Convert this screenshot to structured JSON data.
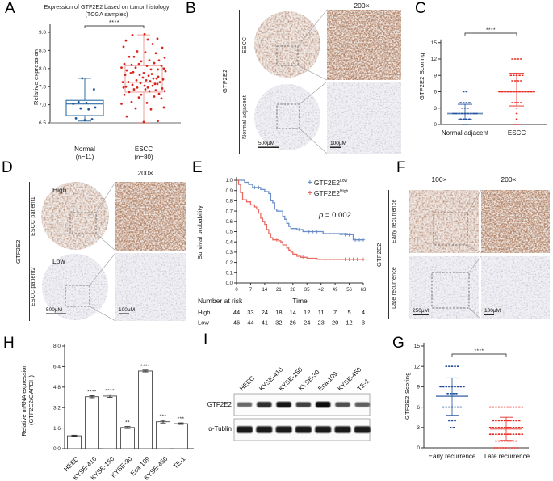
{
  "panels": {
    "A": {
      "label": "A",
      "title1": "Expression of GTF2E2 based on tumor histology",
      "title2": "(TCGA samples)",
      "ylabel": "Relative expression",
      "xcat1": "Normal",
      "xcat1n": "(n=11)",
      "xcat2": "ESCC",
      "xcat2n": "(n=80)"
    },
    "B": {
      "label": "B",
      "mag": "200×",
      "target": "GTF2E2",
      "row1": "ESCC",
      "row2": "Normal adjacent",
      "scale_left": "500μM",
      "scale_right": "100μM"
    },
    "C": {
      "label": "C",
      "ylabel": "GTF2E2 Scoring",
      "xcat1": "Normal adjacent",
      "xcat2": "ESCC"
    },
    "D": {
      "label": "D",
      "mag": "200×",
      "target": "GTF2E2",
      "row1": "ESCC patient1",
      "row2": "ESCC patient2",
      "tag1": "High",
      "tag2": "Low",
      "scale_left": "500μM",
      "scale_right": "100μM"
    },
    "E": {
      "label": "E",
      "ylabel": "Survival probability",
      "legend1_base": "GTF2E2",
      "legend1_sup": "Low",
      "legend2_base": "GTF2E2",
      "legend2_sup": "High",
      "p_italic": "p",
      "p_rest": " = 0.002"
    },
    "F": {
      "label": "F",
      "mag1": "100×",
      "mag2": "200×",
      "target": "GTF2E2",
      "row1": "Early recurrence",
      "row2": "Late recurrence",
      "scale_left": "250μM",
      "scale_right": "100μM"
    },
    "G": {
      "label": "G",
      "ylabel": "GTF2E2 Scoring",
      "xcat1": "Early recurrence",
      "xcat2": "Late recurrence"
    },
    "H": {
      "label": "H",
      "ylabel1": "Relative mRNA expression",
      "ylabel2": "(GTF2E2/GAPDH)"
    },
    "I": {
      "label": "I",
      "band1": "GTF2E2",
      "band2": "α-Tublin"
    }
  },
  "chart_data": [
    {
      "id": "A",
      "type": "box-scatter",
      "title": "Expression of GTF2E2 based on tumor histology (TCGA samples)",
      "ylabel": "Relative expression",
      "ylim": [
        6.5,
        9.0
      ],
      "yticks": [
        6.5,
        7.0,
        7.5,
        8.0,
        8.5,
        9.0
      ],
      "significance": "****",
      "groups": [
        {
          "name": "Normal (n=11)",
          "color": "#1d5596",
          "box_color": "#2e6da4",
          "box": {
            "min": 6.55,
            "q1": 6.7,
            "median": 7.02,
            "q3": 7.12,
            "max": 7.73
          },
          "points": [
            6.55,
            6.6,
            6.65,
            6.85,
            6.9,
            6.95,
            7.0,
            7.05,
            7.1,
            7.4,
            7.73
          ]
        },
        {
          "name": "ESCC (n=80)",
          "color": "#d8251d",
          "box_color": "#efa09b",
          "box": {
            "min": 6.5,
            "q1": 7.35,
            "median": 7.62,
            "q3": 8.08,
            "max": 8.93
          },
          "points": [
            6.5,
            6.55,
            6.7,
            6.85,
            6.9,
            6.95,
            7.0,
            7.05,
            7.1,
            7.15,
            7.2,
            7.25,
            7.25,
            7.3,
            7.3,
            7.35,
            7.35,
            7.4,
            7.4,
            7.4,
            7.45,
            7.45,
            7.45,
            7.5,
            7.5,
            7.5,
            7.5,
            7.55,
            7.55,
            7.55,
            7.6,
            7.6,
            7.6,
            7.6,
            7.65,
            7.65,
            7.65,
            7.7,
            7.7,
            7.7,
            7.75,
            7.75,
            7.8,
            7.8,
            7.8,
            7.85,
            7.85,
            7.85,
            7.9,
            7.9,
            7.9,
            7.95,
            7.95,
            8.0,
            8.0,
            8.0,
            8.05,
            8.05,
            8.1,
            8.1,
            8.1,
            8.15,
            8.15,
            8.2,
            8.2,
            8.25,
            8.3,
            8.3,
            8.35,
            8.4,
            8.45,
            8.5,
            8.55,
            8.6,
            8.7,
            8.75,
            8.8,
            8.85,
            8.9,
            8.95
          ]
        }
      ]
    },
    {
      "id": "C",
      "type": "dot-plot",
      "ylabel": "GTF2E2 Scoring",
      "ylim": [
        0,
        15
      ],
      "yticks": [
        0,
        3,
        6,
        9,
        12,
        15
      ],
      "significance": "****",
      "groups": [
        {
          "name": "Normal adjacent",
          "color": "#1d4f9c",
          "mean": 2.0,
          "err_low": 0.9,
          "err_high": 3.7,
          "rows": [
            [
              6,
              2
            ],
            [
              4,
              4
            ],
            [
              3,
              3
            ],
            [
              2,
              9
            ],
            [
              1,
              4
            ],
            [
              0,
              2
            ]
          ]
        },
        {
          "name": "ESCC",
          "color": "#e8281e",
          "mean": 6.0,
          "err_low": 3.4,
          "err_high": 9.4,
          "rows": [
            [
              12,
              4
            ],
            [
              9,
              5
            ],
            [
              8,
              4
            ],
            [
              6,
              13
            ],
            [
              4,
              4
            ],
            [
              3,
              1
            ],
            [
              2,
              1
            ],
            [
              1,
              1
            ],
            [
              0,
              2
            ]
          ]
        }
      ]
    },
    {
      "id": "E",
      "type": "line-step-km",
      "ylabel": "Survival probability",
      "xlabel": "Time",
      "p_value": "p = 0.002",
      "xticks": [
        0,
        7,
        14,
        21,
        28,
        35,
        42,
        49,
        56,
        63
      ],
      "yticks": [
        0.0,
        0.1,
        0.2,
        0.3,
        0.4,
        0.5,
        0.6,
        0.7,
        0.8,
        0.9,
        1.0
      ],
      "series": [
        {
          "name": "GTF2E2 Low",
          "color": "#6a8ec9",
          "steps": [
            [
              0,
              1.0
            ],
            [
              4,
              0.98
            ],
            [
              6,
              0.96
            ],
            [
              8,
              0.93
            ],
            [
              12,
              0.91
            ],
            [
              14,
              0.89
            ],
            [
              16,
              0.87
            ],
            [
              17,
              0.8
            ],
            [
              18,
              0.78
            ],
            [
              19,
              0.72
            ],
            [
              20,
              0.7
            ],
            [
              23,
              0.65
            ],
            [
              24,
              0.62
            ],
            [
              25,
              0.58
            ],
            [
              26,
              0.55
            ],
            [
              27,
              0.53
            ],
            [
              30,
              0.52
            ],
            [
              33,
              0.5
            ],
            [
              43,
              0.48
            ],
            [
              55,
              0.47
            ],
            [
              58,
              0.42
            ],
            [
              63,
              0.42
            ]
          ],
          "censors": [
            [
              9,
              0.93
            ],
            [
              11,
              0.93
            ],
            [
              21,
              0.7
            ],
            [
              31,
              0.52
            ],
            [
              36,
              0.5
            ],
            [
              38,
              0.5
            ],
            [
              40,
              0.5
            ],
            [
              44,
              0.48
            ],
            [
              46,
              0.48
            ],
            [
              48,
              0.48
            ],
            [
              50,
              0.48
            ],
            [
              52,
              0.47
            ],
            [
              54,
              0.47
            ],
            [
              56,
              0.47
            ],
            [
              59,
              0.42
            ],
            [
              61,
              0.42
            ],
            [
              63,
              0.42
            ]
          ]
        },
        {
          "name": "GTF2E2 High",
          "color": "#ea6a62",
          "steps": [
            [
              0,
              1.0
            ],
            [
              1,
              0.96
            ],
            [
              2,
              0.88
            ],
            [
              3,
              0.81
            ],
            [
              5,
              0.79
            ],
            [
              7,
              0.76
            ],
            [
              9,
              0.74
            ],
            [
              10,
              0.72
            ],
            [
              11,
              0.68
            ],
            [
              12,
              0.63
            ],
            [
              13,
              0.6
            ],
            [
              14,
              0.57
            ],
            [
              15,
              0.52
            ],
            [
              16,
              0.48
            ],
            [
              17,
              0.44
            ],
            [
              18,
              0.42
            ],
            [
              21,
              0.41
            ],
            [
              22,
              0.4
            ],
            [
              23,
              0.37
            ],
            [
              25,
              0.34
            ],
            [
              26,
              0.32
            ],
            [
              27,
              0.3
            ],
            [
              28,
              0.28
            ],
            [
              30,
              0.26
            ],
            [
              32,
              0.25
            ],
            [
              35,
              0.24
            ],
            [
              40,
              0.23
            ],
            [
              63,
              0.23
            ]
          ],
          "censors": [
            [
              20,
              0.42
            ],
            [
              29,
              0.28
            ],
            [
              33,
              0.25
            ],
            [
              44,
              0.23
            ],
            [
              46,
              0.23
            ],
            [
              48,
              0.23
            ],
            [
              50,
              0.23
            ],
            [
              52,
              0.23
            ],
            [
              54,
              0.23
            ],
            [
              56,
              0.23
            ],
            [
              58,
              0.23
            ],
            [
              60,
              0.23
            ],
            [
              63,
              0.23
            ]
          ]
        }
      ],
      "risk": {
        "title": "Number at risk",
        "rows": [
          {
            "label": "High",
            "counts": [
              44,
              33,
              24,
              18,
              14,
              12,
              11,
              7,
              5,
              4
            ]
          },
          {
            "label": "Low",
            "counts": [
              46,
              44,
              41,
              32,
              26,
              24,
              23,
              20,
              12,
              3
            ]
          }
        ]
      }
    },
    {
      "id": "G",
      "type": "dot-plot",
      "ylabel": "GTF2E2 Scoring",
      "ylim": [
        0,
        15
      ],
      "yticks": [
        0,
        3,
        6,
        9,
        12,
        15
      ],
      "significance": "****",
      "groups": [
        {
          "name": "Early recurrence",
          "color": "#1d4f9c",
          "mean": 7.6,
          "err_low": 4.8,
          "err_high": 10.3,
          "rows": [
            [
              12,
              5
            ],
            [
              9,
              9
            ],
            [
              8,
              4
            ],
            [
              6,
              7
            ],
            [
              4,
              3
            ],
            [
              3,
              2
            ]
          ]
        },
        {
          "name": "Late recurrence",
          "color": "#e8281e",
          "mean": 2.8,
          "err_low": 1.1,
          "err_high": 4.5,
          "rows": [
            [
              6,
              12
            ],
            [
              4,
              10
            ],
            [
              3,
              12
            ],
            [
              2,
              12
            ],
            [
              1,
              8
            ],
            [
              0,
              9
            ]
          ]
        }
      ]
    },
    {
      "id": "H",
      "type": "bar",
      "ylabel": "Relative mRNA expression (GTF2E2/GAPDH)",
      "ylim": [
        0,
        8.0
      ],
      "yticks": [
        0.0,
        1.6,
        3.2,
        4.8,
        6.4,
        8.0
      ],
      "categories": [
        "HEEC",
        "KYSE-410",
        "KYSE-150",
        "KYSE-30",
        "Eca-109",
        "KYSE-450",
        "TE-1"
      ],
      "values": [
        1.0,
        4.05,
        4.1,
        1.65,
        6.05,
        2.1,
        1.95
      ],
      "errors": [
        0.05,
        0.08,
        0.1,
        0.08,
        0.07,
        0.1,
        0.06
      ],
      "sig": [
        "",
        "****",
        "****",
        "**",
        "****",
        "***",
        "***"
      ],
      "bar_fill": "#ffffff",
      "bar_stroke": "#4a4a4a"
    },
    {
      "id": "I",
      "type": "western-blot",
      "lanes": [
        "HEEC",
        "KYSE-410",
        "KYSE-150",
        "KYSE-30",
        "Eca-109",
        "KYSE-450",
        "TE-1"
      ],
      "bands": [
        {
          "name": "GTF2E2",
          "intensities": [
            0.45,
            0.8,
            0.95,
            0.7,
            1.0,
            0.6,
            0.5
          ]
        },
        {
          "name": "α-Tublin",
          "intensities": [
            1,
            1,
            1,
            1,
            1,
            1,
            1
          ]
        }
      ]
    }
  ]
}
